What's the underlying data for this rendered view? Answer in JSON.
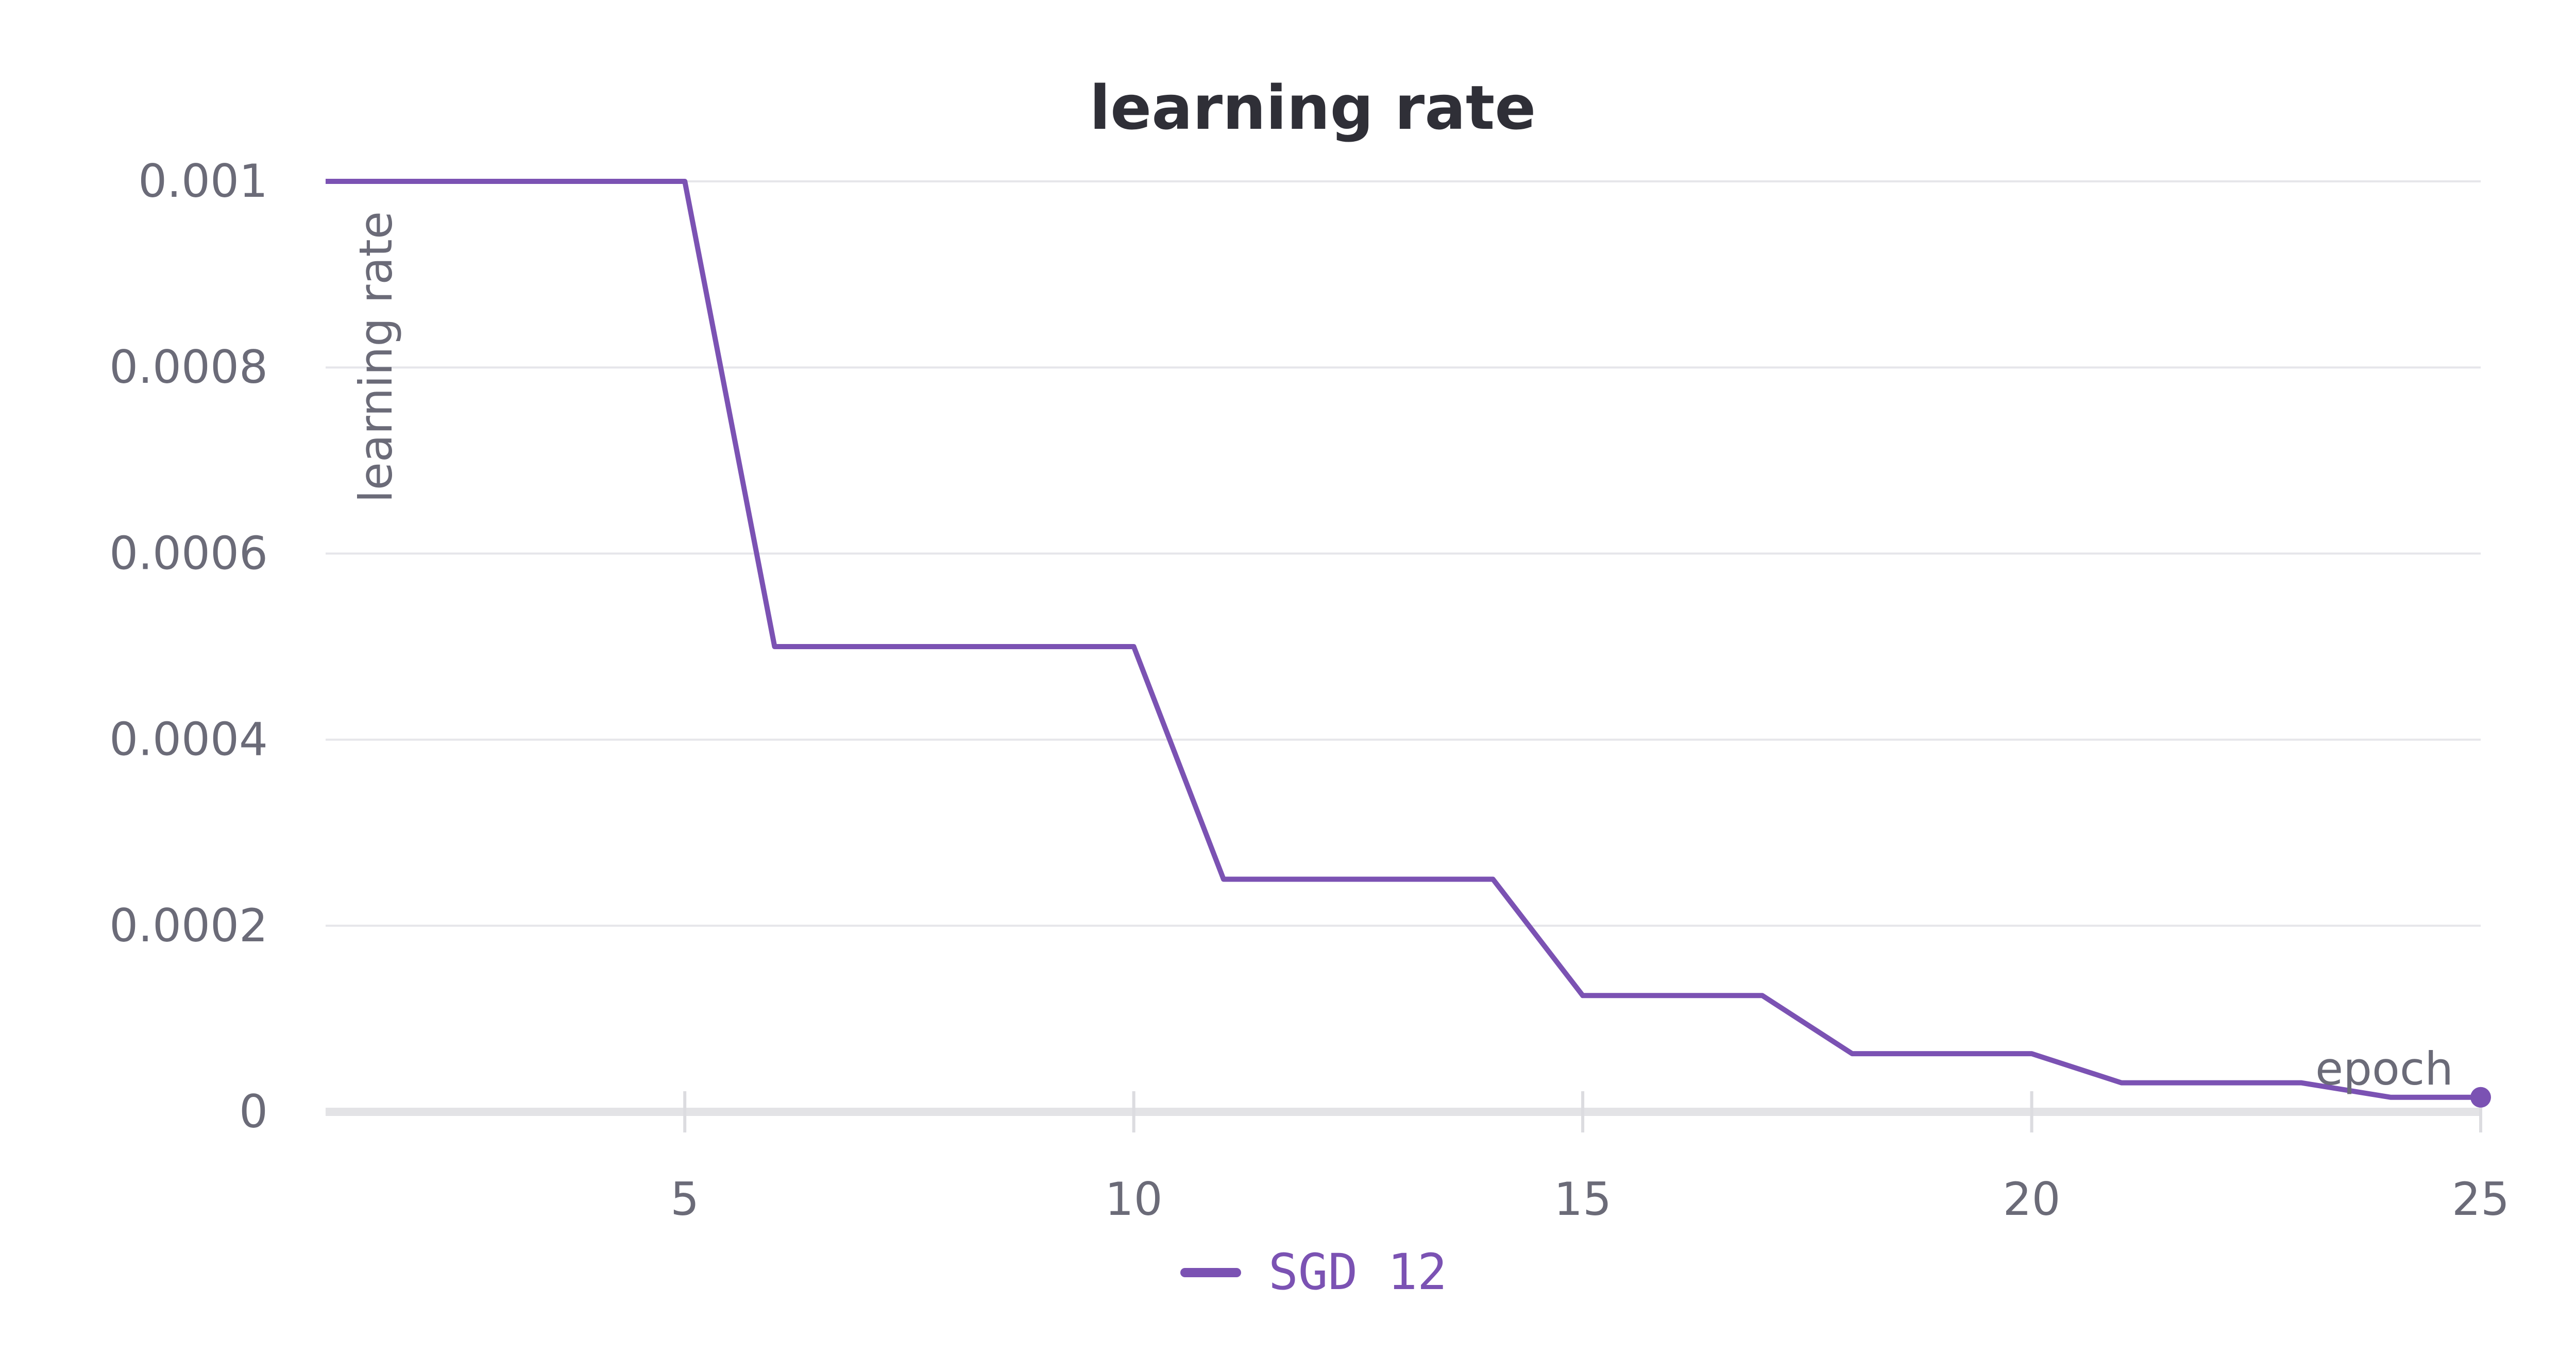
{
  "chart_data": {
    "type": "line",
    "title": "learning rate",
    "xlabel": "epoch",
    "ylabel": "learning rate",
    "xlim": [
      1,
      25
    ],
    "ylim": [
      0,
      0.001
    ],
    "x_ticks": [
      5,
      10,
      15,
      20,
      25
    ],
    "y_ticks": [
      0,
      0.0002,
      0.0004,
      0.0006,
      0.0008,
      0.001
    ],
    "y_tick_labels": [
      "0",
      "0.0002",
      "0.0004",
      "0.0006",
      "0.0008",
      "0.001"
    ],
    "grid": true,
    "legend_position": "bottom-center",
    "series": [
      {
        "name": "SGD 12",
        "color": "#7b52b3",
        "x": [
          1,
          2,
          3,
          4,
          5,
          6,
          7,
          8,
          9,
          10,
          11,
          12,
          13,
          14,
          15,
          16,
          17,
          18,
          19,
          20,
          21,
          22,
          23,
          24,
          25
        ],
        "y": [
          0.001,
          0.001,
          0.001,
          0.001,
          0.001,
          0.0005,
          0.0005,
          0.0005,
          0.0005,
          0.0005,
          0.00025,
          0.00025,
          0.00025,
          0.00025,
          0.000125,
          0.000125,
          0.000125,
          6.25e-05,
          6.25e-05,
          6.25e-05,
          3.125e-05,
          3.125e-05,
          3.125e-05,
          1.5625e-05,
          1.5625e-05
        ]
      }
    ]
  }
}
